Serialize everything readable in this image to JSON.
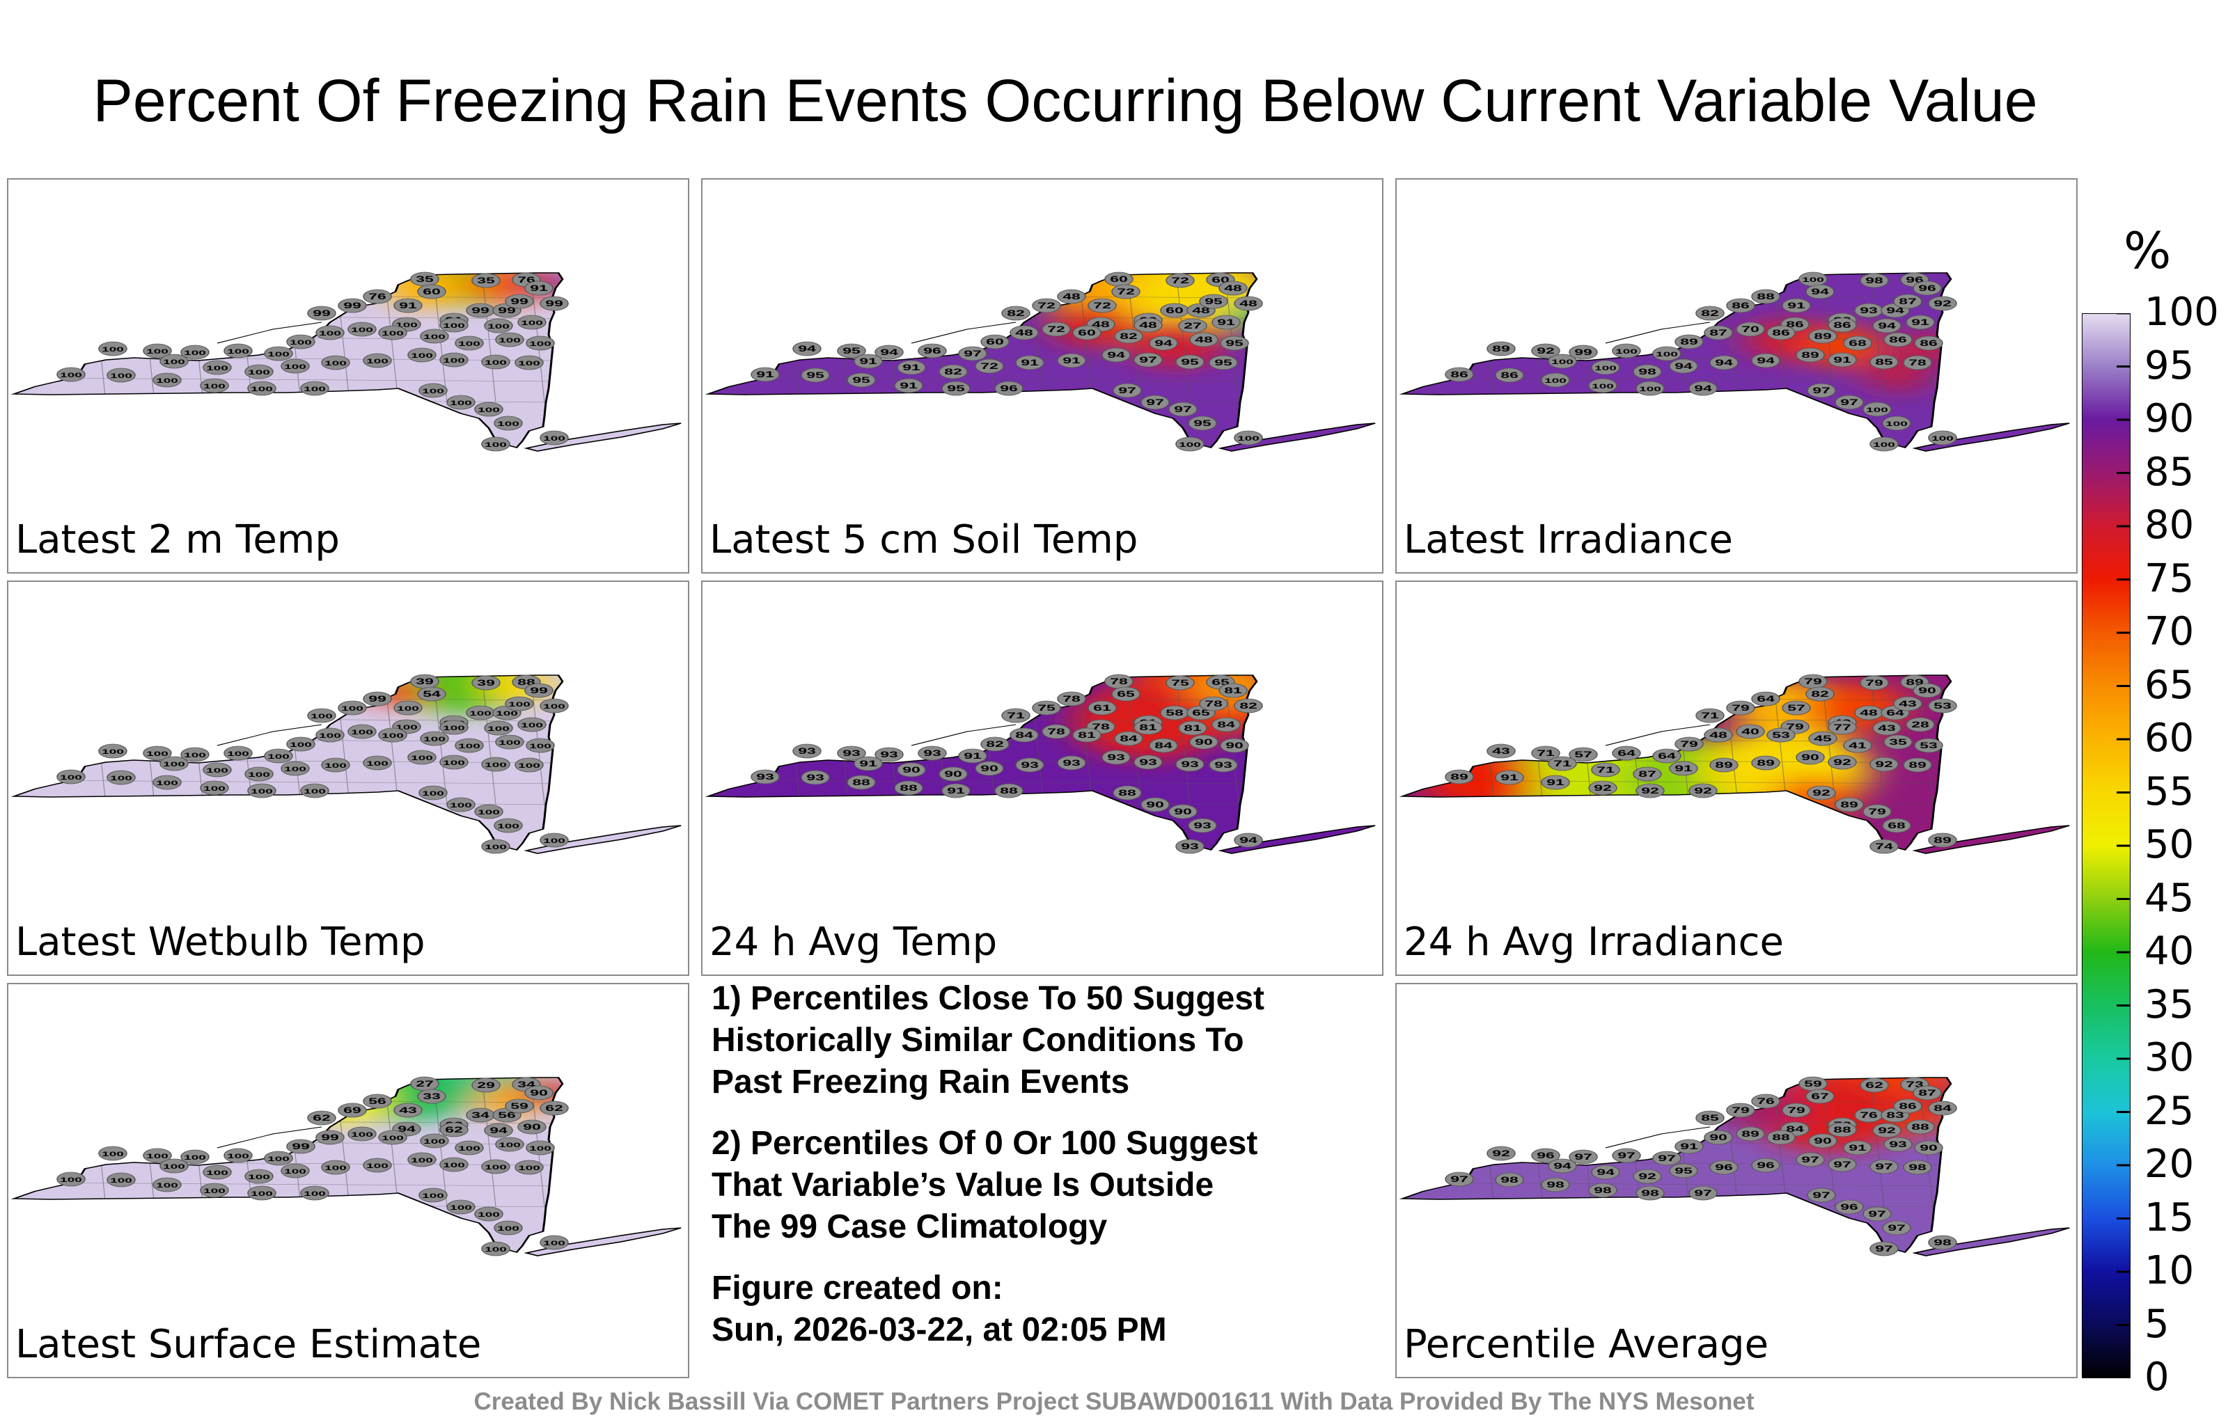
{
  "title": "Percent Of Freezing Rain Events Occurring Below Current Variable Value",
  "chart_data": {
    "type": "heatmap",
    "title": "Percent Of Freezing Rain Events Occurring Below Current Variable Value",
    "colorbar": {
      "unit": "%",
      "range": [
        0,
        100
      ],
      "ticks": [
        "0",
        "5",
        "10",
        "15",
        "20",
        "25",
        "30",
        "35",
        "40",
        "45",
        "50",
        "55",
        "60",
        "65",
        "70",
        "75",
        "80",
        "85",
        "90",
        "95",
        "100"
      ],
      "colors": [
        "#000000",
        "#0a0a5a",
        "#1010a0",
        "#1a4fe0",
        "#1f8fe6",
        "#1cc3d8",
        "#19c9a0",
        "#18c060",
        "#22b818",
        "#8ed010",
        "#f0f000",
        "#f8d800",
        "#fbb400",
        "#f88c00",
        "#f45a00",
        "#ee1a00",
        "#d01a30",
        "#9a1a70",
        "#6a1aa0",
        "#9a80c8",
        "#e6dcf0"
      ]
    },
    "panels": [
      {
        "label": "Latest 2 m Temp",
        "values": [
          "35",
          "35",
          "76",
          "91",
          "60",
          "76",
          "91",
          "99",
          "99",
          "99",
          "99",
          "91",
          "99",
          "99",
          "100",
          "100",
          "100",
          "100",
          "100",
          "100",
          "100",
          "100",
          "100",
          "100",
          "100",
          "100",
          "100",
          "100",
          "100",
          "100",
          "100",
          "100",
          "100",
          "100",
          "100",
          "100",
          "100",
          "100",
          "100",
          "100",
          "100",
          "100",
          "100",
          "100",
          "100",
          "100",
          "100",
          "100",
          "100",
          "100",
          "100",
          "100",
          "100"
        ]
      },
      {
        "label": "Latest 5 cm Soil Temp",
        "values": [
          "60",
          "72",
          "60",
          "48",
          "72",
          "48",
          "72",
          "60",
          "48",
          "95",
          "48",
          "60",
          "82",
          "72",
          "48",
          "48",
          "27",
          "91",
          "60",
          "48",
          "72",
          "60",
          "82",
          "94",
          "48",
          "95",
          "94",
          "95",
          "94",
          "96",
          "97",
          "91",
          "91",
          "82",
          "72",
          "91",
          "91",
          "94",
          "97",
          "95",
          "95",
          "91",
          "95",
          "95",
          "91",
          "95",
          "96",
          "97",
          "97",
          "97",
          "95",
          "100",
          "100"
        ]
      },
      {
        "label": "Latest Irradiance",
        "values": [
          "100",
          "98",
          "96",
          "96",
          "94",
          "88",
          "91",
          "93",
          "94",
          "87",
          "92",
          "89",
          "82",
          "86",
          "86",
          "86",
          "94",
          "91",
          "89",
          "87",
          "70",
          "86",
          "89",
          "68",
          "86",
          "86",
          "89",
          "92",
          "99",
          "100",
          "100",
          "100",
          "100",
          "98",
          "94",
          "94",
          "94",
          "89",
          "91",
          "85",
          "78",
          "86",
          "86",
          "100",
          "100",
          "100",
          "94",
          "97",
          "97",
          "100",
          "100",
          "100",
          "100"
        ]
      },
      {
        "label": "Latest Wetbulb Temp",
        "values": [
          "39",
          "39",
          "88",
          "99",
          "54",
          "99",
          "100",
          "100",
          "100",
          "100",
          "100",
          "100",
          "100",
          "100",
          "100",
          "100",
          "100",
          "100",
          "100",
          "100",
          "100",
          "100",
          "100",
          "100",
          "100",
          "100",
          "100",
          "100",
          "100",
          "100",
          "100",
          "100",
          "100",
          "100",
          "100",
          "100",
          "100",
          "100",
          "100",
          "100",
          "100",
          "100",
          "100",
          "100",
          "100",
          "100",
          "100",
          "100",
          "100",
          "100",
          "100",
          "100",
          "100"
        ]
      },
      {
        "label": "24 h Avg Temp",
        "values": [
          "78",
          "75",
          "65",
          "81",
          "65",
          "78",
          "61",
          "58",
          "65",
          "78",
          "82",
          "61",
          "71",
          "75",
          "78",
          "81",
          "81",
          "84",
          "82",
          "84",
          "78",
          "81",
          "84",
          "84",
          "90",
          "90",
          "93",
          "93",
          "93",
          "93",
          "91",
          "91",
          "90",
          "90",
          "90",
          "93",
          "93",
          "93",
          "93",
          "93",
          "93",
          "93",
          "93",
          "88",
          "88",
          "91",
          "88",
          "88",
          "90",
          "90",
          "93",
          "93",
          "94"
        ]
      },
      {
        "label": "24 h Avg Irradiance",
        "values": [
          "79",
          "79",
          "89",
          "90",
          "82",
          "64",
          "57",
          "48",
          "64",
          "43",
          "53",
          "43",
          "71",
          "79",
          "79",
          "77",
          "43",
          "28",
          "79",
          "48",
          "40",
          "53",
          "45",
          "41",
          "35",
          "53",
          "43",
          "71",
          "57",
          "64",
          "64",
          "71",
          "71",
          "87",
          "91",
          "89",
          "89",
          "90",
          "92",
          "92",
          "89",
          "89",
          "91",
          "91",
          "92",
          "92",
          "92",
          "92",
          "89",
          "79",
          "68",
          "74",
          "89"
        ]
      },
      {
        "label": "Latest Surface Estimate",
        "values": [
          "27",
          "29",
          "34",
          "90",
          "33",
          "56",
          "43",
          "34",
          "56",
          "59",
          "62",
          "69",
          "62",
          "69",
          "94",
          "62",
          "94",
          "90",
          "99",
          "99",
          "100",
          "100",
          "100",
          "100",
          "100",
          "100",
          "100",
          "100",
          "100",
          "100",
          "100",
          "100",
          "100",
          "100",
          "100",
          "100",
          "100",
          "100",
          "100",
          "100",
          "100",
          "100",
          "100",
          "100",
          "100",
          "100",
          "100",
          "100",
          "100",
          "100",
          "100",
          "100",
          "100"
        ]
      },
      {
        "label": "Percentile Average",
        "values": [
          "59",
          "62",
          "73",
          "87",
          "67",
          "76",
          "79",
          "76",
          "83",
          "86",
          "84",
          "78",
          "85",
          "79",
          "84",
          "88",
          "92",
          "88",
          "91",
          "90",
          "89",
          "88",
          "90",
          "91",
          "93",
          "90",
          "92",
          "96",
          "97",
          "97",
          "97",
          "94",
          "94",
          "92",
          "95",
          "96",
          "96",
          "97",
          "97",
          "97",
          "98",
          "97",
          "98",
          "98",
          "98",
          "98",
          "97",
          "97",
          "96",
          "97",
          "97",
          "97",
          "98"
        ]
      }
    ]
  },
  "notes": {
    "note1": [
      "1) Percentiles Close To 50 Suggest",
      "Historically Similar Conditions To",
      "Past Freezing Rain Events"
    ],
    "note2": [
      "2) Percentiles Of 0 Or 100 Suggest",
      "That Variable’s Value Is Outside",
      "The 99 Case Climatology"
    ],
    "created_label": "Figure created on:",
    "created_date": "Sun, 2026-03-22, at 02:05 PM"
  },
  "credit": "Created By Nick Bassill Via COMET Partners Project SUBAWD001611 With Data Provided By The NYS Mesonet"
}
